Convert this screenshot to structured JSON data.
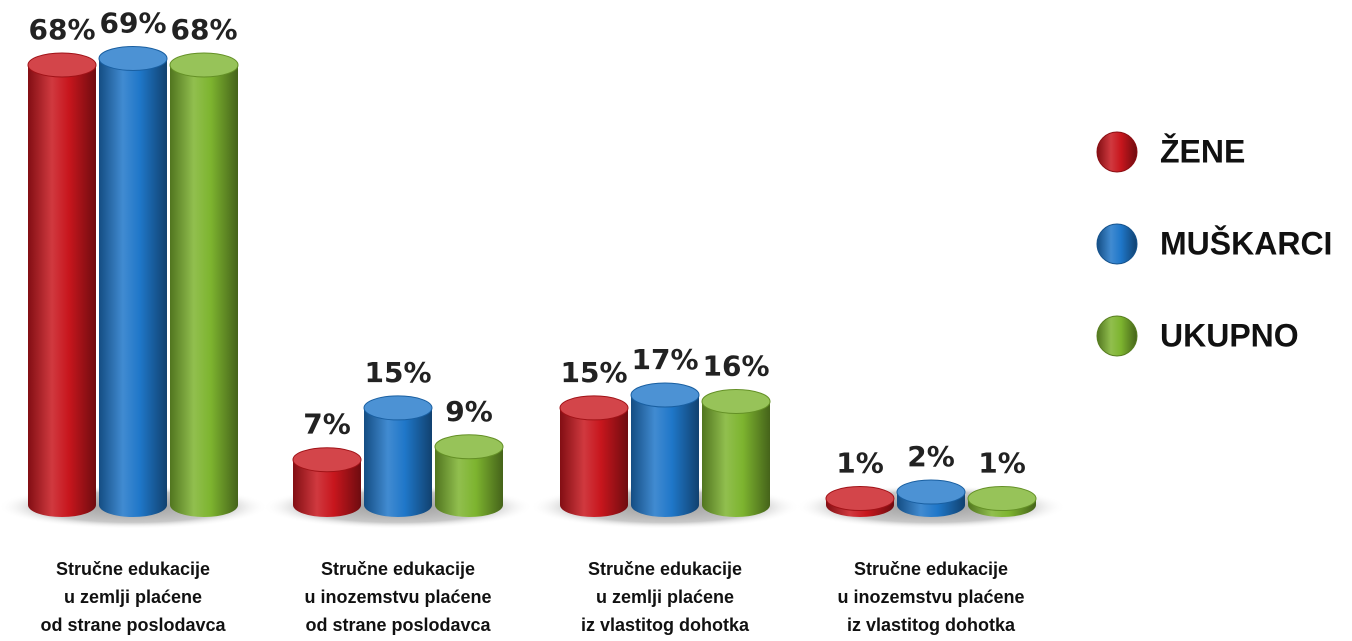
{
  "chart_data": {
    "type": "bar",
    "categories": [
      [
        "Stručne edukacije",
        "u zemlji plaćene",
        "od strane poslodavca"
      ],
      [
        "Stručne edukacije",
        "u inozemstvu plaćene",
        "od strane poslodavca"
      ],
      [
        "Stručne edukacije",
        "u zemlji plaćene",
        "iz vlastitog dohotka"
      ],
      [
        "Stručne edukacije",
        "u inozemstvu plaćene",
        "iz vlastitog dohotka"
      ]
    ],
    "series": [
      {
        "name": "ŽENE",
        "color": "#c8161d",
        "values": [
          68,
          7,
          15,
          1
        ],
        "value_labels": [
          "68%",
          "7%",
          "15%",
          "1%"
        ]
      },
      {
        "name": "MUŠKARCI",
        "color": "#1f77c9",
        "values": [
          69,
          15,
          17,
          2
        ],
        "value_labels": [
          "69%",
          "15%",
          "17%",
          "2%"
        ]
      },
      {
        "name": "UKUPNO",
        "color": "#7db42f",
        "values": [
          68,
          9,
          16,
          1
        ],
        "value_labels": [
          "68%",
          "9%",
          "16%",
          "1%"
        ]
      }
    ],
    "ylim": [
      0,
      70
    ],
    "legend": "right"
  }
}
